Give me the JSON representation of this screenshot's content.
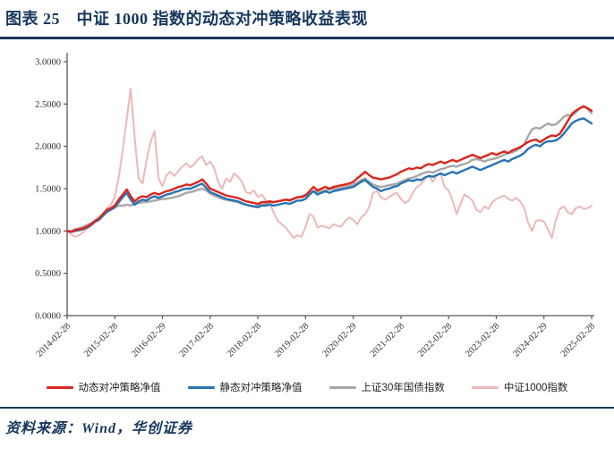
{
  "header": {
    "title": "图表 25　中证 1000 指数的动态对冲策略收益表现"
  },
  "footer": {
    "source": "资料来源：Wind，华创证券"
  },
  "colors": {
    "navy": "#17375E",
    "red": "#DA251C",
    "blue": "#2873B4",
    "grey": "#A6A6A6",
    "pink": "#ECB8BA",
    "axis": "#595959",
    "tick_text": "#333333"
  },
  "chart_data": {
    "type": "line",
    "title": "中证1000指数的动态对冲策略收益表现",
    "x_unit": "monthly",
    "x_start": "2014-02",
    "x_end": "2025-02",
    "x_tick_labels": [
      "2014-02-28",
      "2015-02-28",
      "2016-02-29",
      "2017-02-28",
      "2018-02-28",
      "2019-02-28",
      "2020-02-29",
      "2021-02-28",
      "2022-02-28",
      "2023-02-28",
      "2024-02-29",
      "2025-02-28"
    ],
    "y_ticks": [
      0,
      0.5,
      1,
      1.5,
      2,
      2.5,
      3
    ],
    "y_tick_labels": [
      "0.0000",
      "0.5000",
      "1.0000",
      "1.5000",
      "2.0000",
      "2.5000",
      "3.0000"
    ],
    "ylim": [
      0,
      3
    ],
    "grid": false,
    "legend_position": "bottom",
    "series": [
      {
        "name": "动态对冲策略净值",
        "color_key": "red",
        "values": [
          1.0,
          0.99,
          1.01,
          1.02,
          1.03,
          1.05,
          1.08,
          1.12,
          1.15,
          1.2,
          1.25,
          1.27,
          1.3,
          1.37,
          1.43,
          1.49,
          1.41,
          1.35,
          1.39,
          1.41,
          1.4,
          1.43,
          1.45,
          1.43,
          1.45,
          1.47,
          1.48,
          1.5,
          1.52,
          1.53,
          1.55,
          1.54,
          1.56,
          1.58,
          1.61,
          1.56,
          1.5,
          1.48,
          1.46,
          1.44,
          1.42,
          1.41,
          1.4,
          1.39,
          1.37,
          1.35,
          1.34,
          1.33,
          1.32,
          1.34,
          1.34,
          1.35,
          1.34,
          1.35,
          1.36,
          1.37,
          1.36,
          1.38,
          1.4,
          1.4,
          1.42,
          1.47,
          1.52,
          1.48,
          1.5,
          1.52,
          1.5,
          1.52,
          1.53,
          1.54,
          1.55,
          1.56,
          1.58,
          1.62,
          1.66,
          1.7,
          1.66,
          1.63,
          1.62,
          1.61,
          1.62,
          1.63,
          1.65,
          1.67,
          1.7,
          1.72,
          1.74,
          1.73,
          1.75,
          1.74,
          1.77,
          1.79,
          1.78,
          1.8,
          1.82,
          1.8,
          1.82,
          1.84,
          1.82,
          1.84,
          1.86,
          1.88,
          1.9,
          1.88,
          1.86,
          1.88,
          1.9,
          1.92,
          1.9,
          1.92,
          1.94,
          1.92,
          1.95,
          1.97,
          1.99,
          2.02,
          2.05,
          2.07,
          2.08,
          2.05,
          2.08,
          2.11,
          2.13,
          2.12,
          2.15,
          2.22,
          2.3,
          2.38,
          2.42,
          2.45,
          2.47,
          2.45,
          2.42
        ]
      },
      {
        "name": "静态对冲策略净值",
        "color_key": "blue",
        "values": [
          1.0,
          0.99,
          1.0,
          1.01,
          1.02,
          1.04,
          1.07,
          1.11,
          1.13,
          1.18,
          1.23,
          1.25,
          1.28,
          1.34,
          1.4,
          1.45,
          1.37,
          1.31,
          1.35,
          1.37,
          1.36,
          1.39,
          1.41,
          1.39,
          1.41,
          1.43,
          1.44,
          1.46,
          1.47,
          1.49,
          1.5,
          1.5,
          1.52,
          1.54,
          1.56,
          1.51,
          1.46,
          1.44,
          1.42,
          1.4,
          1.38,
          1.37,
          1.36,
          1.35,
          1.33,
          1.31,
          1.3,
          1.29,
          1.28,
          1.3,
          1.3,
          1.31,
          1.3,
          1.31,
          1.32,
          1.33,
          1.32,
          1.34,
          1.36,
          1.36,
          1.38,
          1.43,
          1.47,
          1.43,
          1.45,
          1.47,
          1.45,
          1.47,
          1.48,
          1.49,
          1.5,
          1.51,
          1.52,
          1.55,
          1.58,
          1.6,
          1.56,
          1.52,
          1.5,
          1.47,
          1.49,
          1.5,
          1.52,
          1.53,
          1.56,
          1.58,
          1.6,
          1.59,
          1.61,
          1.6,
          1.63,
          1.65,
          1.64,
          1.66,
          1.68,
          1.66,
          1.68,
          1.7,
          1.68,
          1.7,
          1.72,
          1.74,
          1.76,
          1.74,
          1.72,
          1.74,
          1.76,
          1.78,
          1.8,
          1.82,
          1.84,
          1.82,
          1.85,
          1.87,
          1.89,
          1.92,
          1.97,
          2.0,
          2.02,
          2.0,
          2.04,
          2.06,
          2.06,
          2.07,
          2.1,
          2.15,
          2.21,
          2.27,
          2.3,
          2.32,
          2.33,
          2.3,
          2.27
        ]
      },
      {
        "name": "上证30年国债指数",
        "color_key": "grey",
        "values": [
          1.0,
          1.0,
          1.02,
          1.03,
          1.05,
          1.07,
          1.09,
          1.12,
          1.14,
          1.18,
          1.22,
          1.26,
          1.28,
          1.3,
          1.3,
          1.31,
          1.3,
          1.32,
          1.33,
          1.34,
          1.34,
          1.35,
          1.36,
          1.37,
          1.38,
          1.38,
          1.39,
          1.4,
          1.41,
          1.43,
          1.45,
          1.46,
          1.47,
          1.49,
          1.5,
          1.48,
          1.44,
          1.42,
          1.4,
          1.38,
          1.37,
          1.36,
          1.35,
          1.34,
          1.32,
          1.31,
          1.3,
          1.29,
          1.3,
          1.31,
          1.32,
          1.33,
          1.34,
          1.35,
          1.36,
          1.37,
          1.37,
          1.38,
          1.4,
          1.41,
          1.43,
          1.45,
          1.47,
          1.46,
          1.47,
          1.48,
          1.49,
          1.5,
          1.5,
          1.51,
          1.52,
          1.53,
          1.55,
          1.57,
          1.6,
          1.62,
          1.58,
          1.55,
          1.53,
          1.52,
          1.53,
          1.54,
          1.55,
          1.56,
          1.58,
          1.6,
          1.62,
          1.63,
          1.65,
          1.67,
          1.69,
          1.7,
          1.69,
          1.71,
          1.73,
          1.74,
          1.76,
          1.77,
          1.76,
          1.78,
          1.79,
          1.81,
          1.84,
          1.85,
          1.84,
          1.82,
          1.84,
          1.85,
          1.86,
          1.88,
          1.9,
          1.92,
          1.93,
          1.95,
          1.98,
          2.02,
          2.12,
          2.2,
          2.22,
          2.21,
          2.24,
          2.27,
          2.25,
          2.26,
          2.3,
          2.35,
          2.37,
          2.36,
          2.4,
          2.45,
          2.48,
          2.44,
          2.39
        ]
      },
      {
        "name": "中证1000指数",
        "color_key": "pink",
        "values": [
          1.0,
          0.96,
          0.93,
          0.95,
          0.98,
          1.03,
          1.06,
          1.1,
          1.13,
          1.19,
          1.27,
          1.31,
          1.4,
          1.64,
          1.96,
          2.32,
          2.68,
          2.1,
          1.62,
          1.56,
          1.84,
          2.05,
          2.18,
          1.62,
          1.53,
          1.66,
          1.7,
          1.65,
          1.71,
          1.76,
          1.8,
          1.75,
          1.79,
          1.85,
          1.88,
          1.78,
          1.82,
          1.74,
          1.58,
          1.5,
          1.62,
          1.58,
          1.68,
          1.64,
          1.58,
          1.46,
          1.44,
          1.48,
          1.4,
          1.43,
          1.36,
          1.32,
          1.22,
          1.12,
          1.08,
          1.04,
          0.98,
          0.92,
          0.95,
          0.93,
          1.05,
          1.2,
          1.17,
          1.04,
          1.06,
          1.05,
          1.03,
          1.08,
          1.06,
          1.05,
          1.12,
          1.16,
          1.13,
          1.08,
          1.16,
          1.2,
          1.28,
          1.45,
          1.47,
          1.4,
          1.37,
          1.4,
          1.43,
          1.45,
          1.38,
          1.33,
          1.36,
          1.45,
          1.52,
          1.55,
          1.61,
          1.66,
          1.58,
          1.65,
          1.68,
          1.52,
          1.48,
          1.36,
          1.2,
          1.32,
          1.43,
          1.4,
          1.36,
          1.25,
          1.22,
          1.29,
          1.26,
          1.34,
          1.38,
          1.4,
          1.42,
          1.38,
          1.36,
          1.39,
          1.35,
          1.28,
          1.1,
          1.0,
          1.12,
          1.13,
          1.11,
          1.02,
          0.92,
          1.13,
          1.26,
          1.29,
          1.22,
          1.2,
          1.27,
          1.29,
          1.26,
          1.27,
          1.3
        ]
      }
    ]
  }
}
